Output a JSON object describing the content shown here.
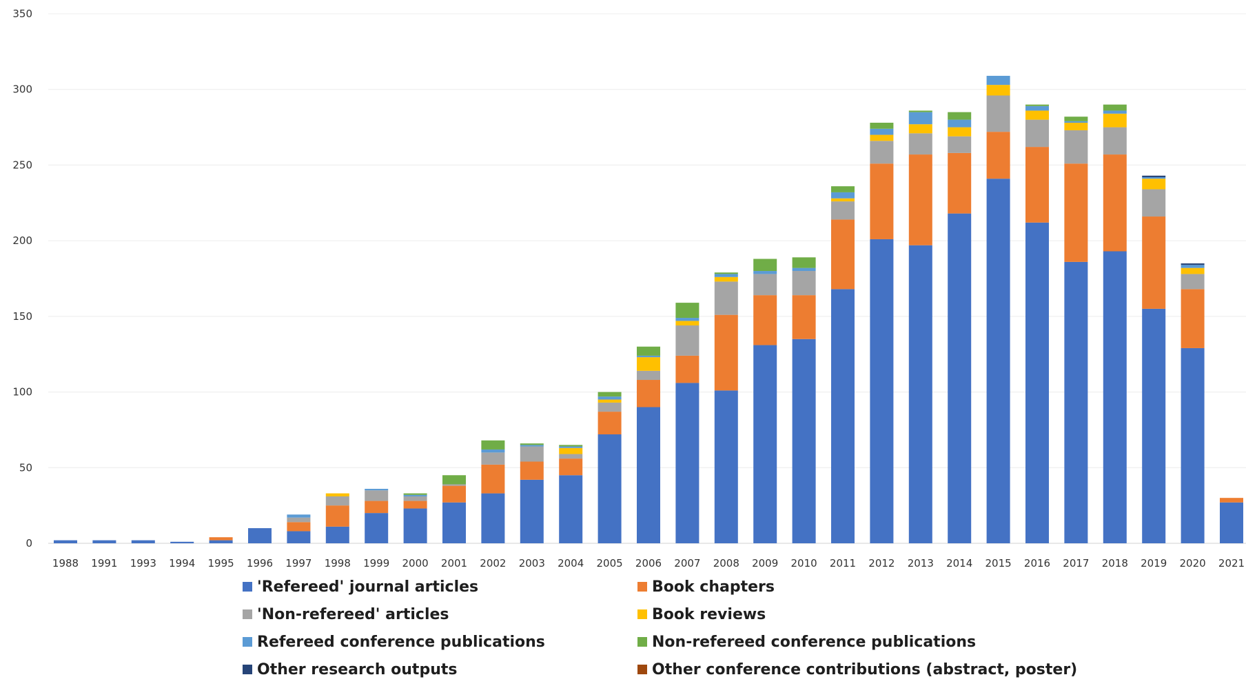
{
  "chart_data": {
    "type": "bar",
    "stacked": true,
    "title": "",
    "xlabel": "",
    "ylabel": "",
    "ylim": [
      0,
      350
    ],
    "yticks": [
      0,
      50,
      100,
      150,
      200,
      250,
      300,
      350
    ],
    "grid": "horizontal",
    "legend_position": "bottom",
    "categories": [
      "1988",
      "1991",
      "1993",
      "1994",
      "1995",
      "1996",
      "1997",
      "1998",
      "1999",
      "2000",
      "2001",
      "2002",
      "2003",
      "2004",
      "2005",
      "2006",
      "2007",
      "2008",
      "2009",
      "2010",
      "2011",
      "2012",
      "2013",
      "2014",
      "2015",
      "2016",
      "2017",
      "2018",
      "2019",
      "2020",
      "2021"
    ],
    "series": [
      {
        "name": "'Refereed' journal articles",
        "color": "#4472C4",
        "values": [
          2,
          2,
          2,
          1,
          2,
          10,
          8,
          11,
          20,
          23,
          27,
          33,
          42,
          45,
          72,
          90,
          106,
          101,
          131,
          135,
          168,
          201,
          197,
          218,
          241,
          212,
          186,
          193,
          155,
          129,
          27
        ]
      },
      {
        "name": "Book chapters",
        "color": "#ED7D31",
        "values": [
          0,
          0,
          0,
          0,
          2,
          0,
          6,
          14,
          8,
          5,
          11,
          19,
          12,
          11,
          15,
          18,
          18,
          50,
          33,
          29,
          46,
          50,
          60,
          40,
          31,
          50,
          65,
          64,
          61,
          39,
          3
        ]
      },
      {
        "name": "'Non-refereed' articles",
        "color": "#A5A5A5",
        "values": [
          0,
          0,
          0,
          0,
          0,
          0,
          3,
          6,
          7,
          3,
          1,
          8,
          10,
          3,
          6,
          6,
          20,
          22,
          14,
          16,
          12,
          15,
          14,
          11,
          24,
          18,
          22,
          18,
          18,
          10,
          0
        ]
      },
      {
        "name": "Book reviews",
        "color": "#FFC000",
        "values": [
          0,
          0,
          0,
          0,
          0,
          0,
          0,
          2,
          0,
          0,
          0,
          0,
          0,
          4,
          2,
          9,
          3,
          3,
          0,
          0,
          2,
          4,
          6,
          6,
          7,
          6,
          5,
          9,
          7,
          4,
          0
        ]
      },
      {
        "name": "Refereed conference publications",
        "color": "#5B9BD5",
        "values": [
          0,
          0,
          0,
          0,
          0,
          0,
          2,
          0,
          1,
          1,
          0,
          2,
          1,
          1,
          2,
          1,
          2,
          2,
          2,
          2,
          4,
          4,
          8,
          5,
          6,
          3,
          1,
          2,
          1,
          2,
          0
        ]
      },
      {
        "name": "Non-refereed conference publications",
        "color": "#70AD47",
        "values": [
          0,
          0,
          0,
          0,
          0,
          0,
          0,
          0,
          0,
          1,
          6,
          6,
          1,
          1,
          3,
          6,
          10,
          1,
          8,
          7,
          4,
          4,
          1,
          5,
          0,
          1,
          3,
          4,
          0,
          0,
          0
        ]
      },
      {
        "name": "Other research outputs",
        "color": "#264478",
        "values": [
          0,
          0,
          0,
          0,
          0,
          0,
          0,
          0,
          0,
          0,
          0,
          0,
          0,
          0,
          0,
          0,
          0,
          0,
          0,
          0,
          0,
          0,
          0,
          0,
          0,
          0,
          0,
          0,
          1,
          1,
          0
        ]
      },
      {
        "name": "Other conference contributions (abstract, poster)",
        "color": "#9E480E",
        "values": [
          0,
          0,
          0,
          0,
          0,
          0,
          0,
          0,
          0,
          0,
          0,
          0,
          0,
          0,
          0,
          0,
          0,
          0,
          0,
          0,
          0,
          0,
          0,
          0,
          0,
          0,
          0,
          0,
          0,
          0,
          0
        ]
      }
    ]
  }
}
